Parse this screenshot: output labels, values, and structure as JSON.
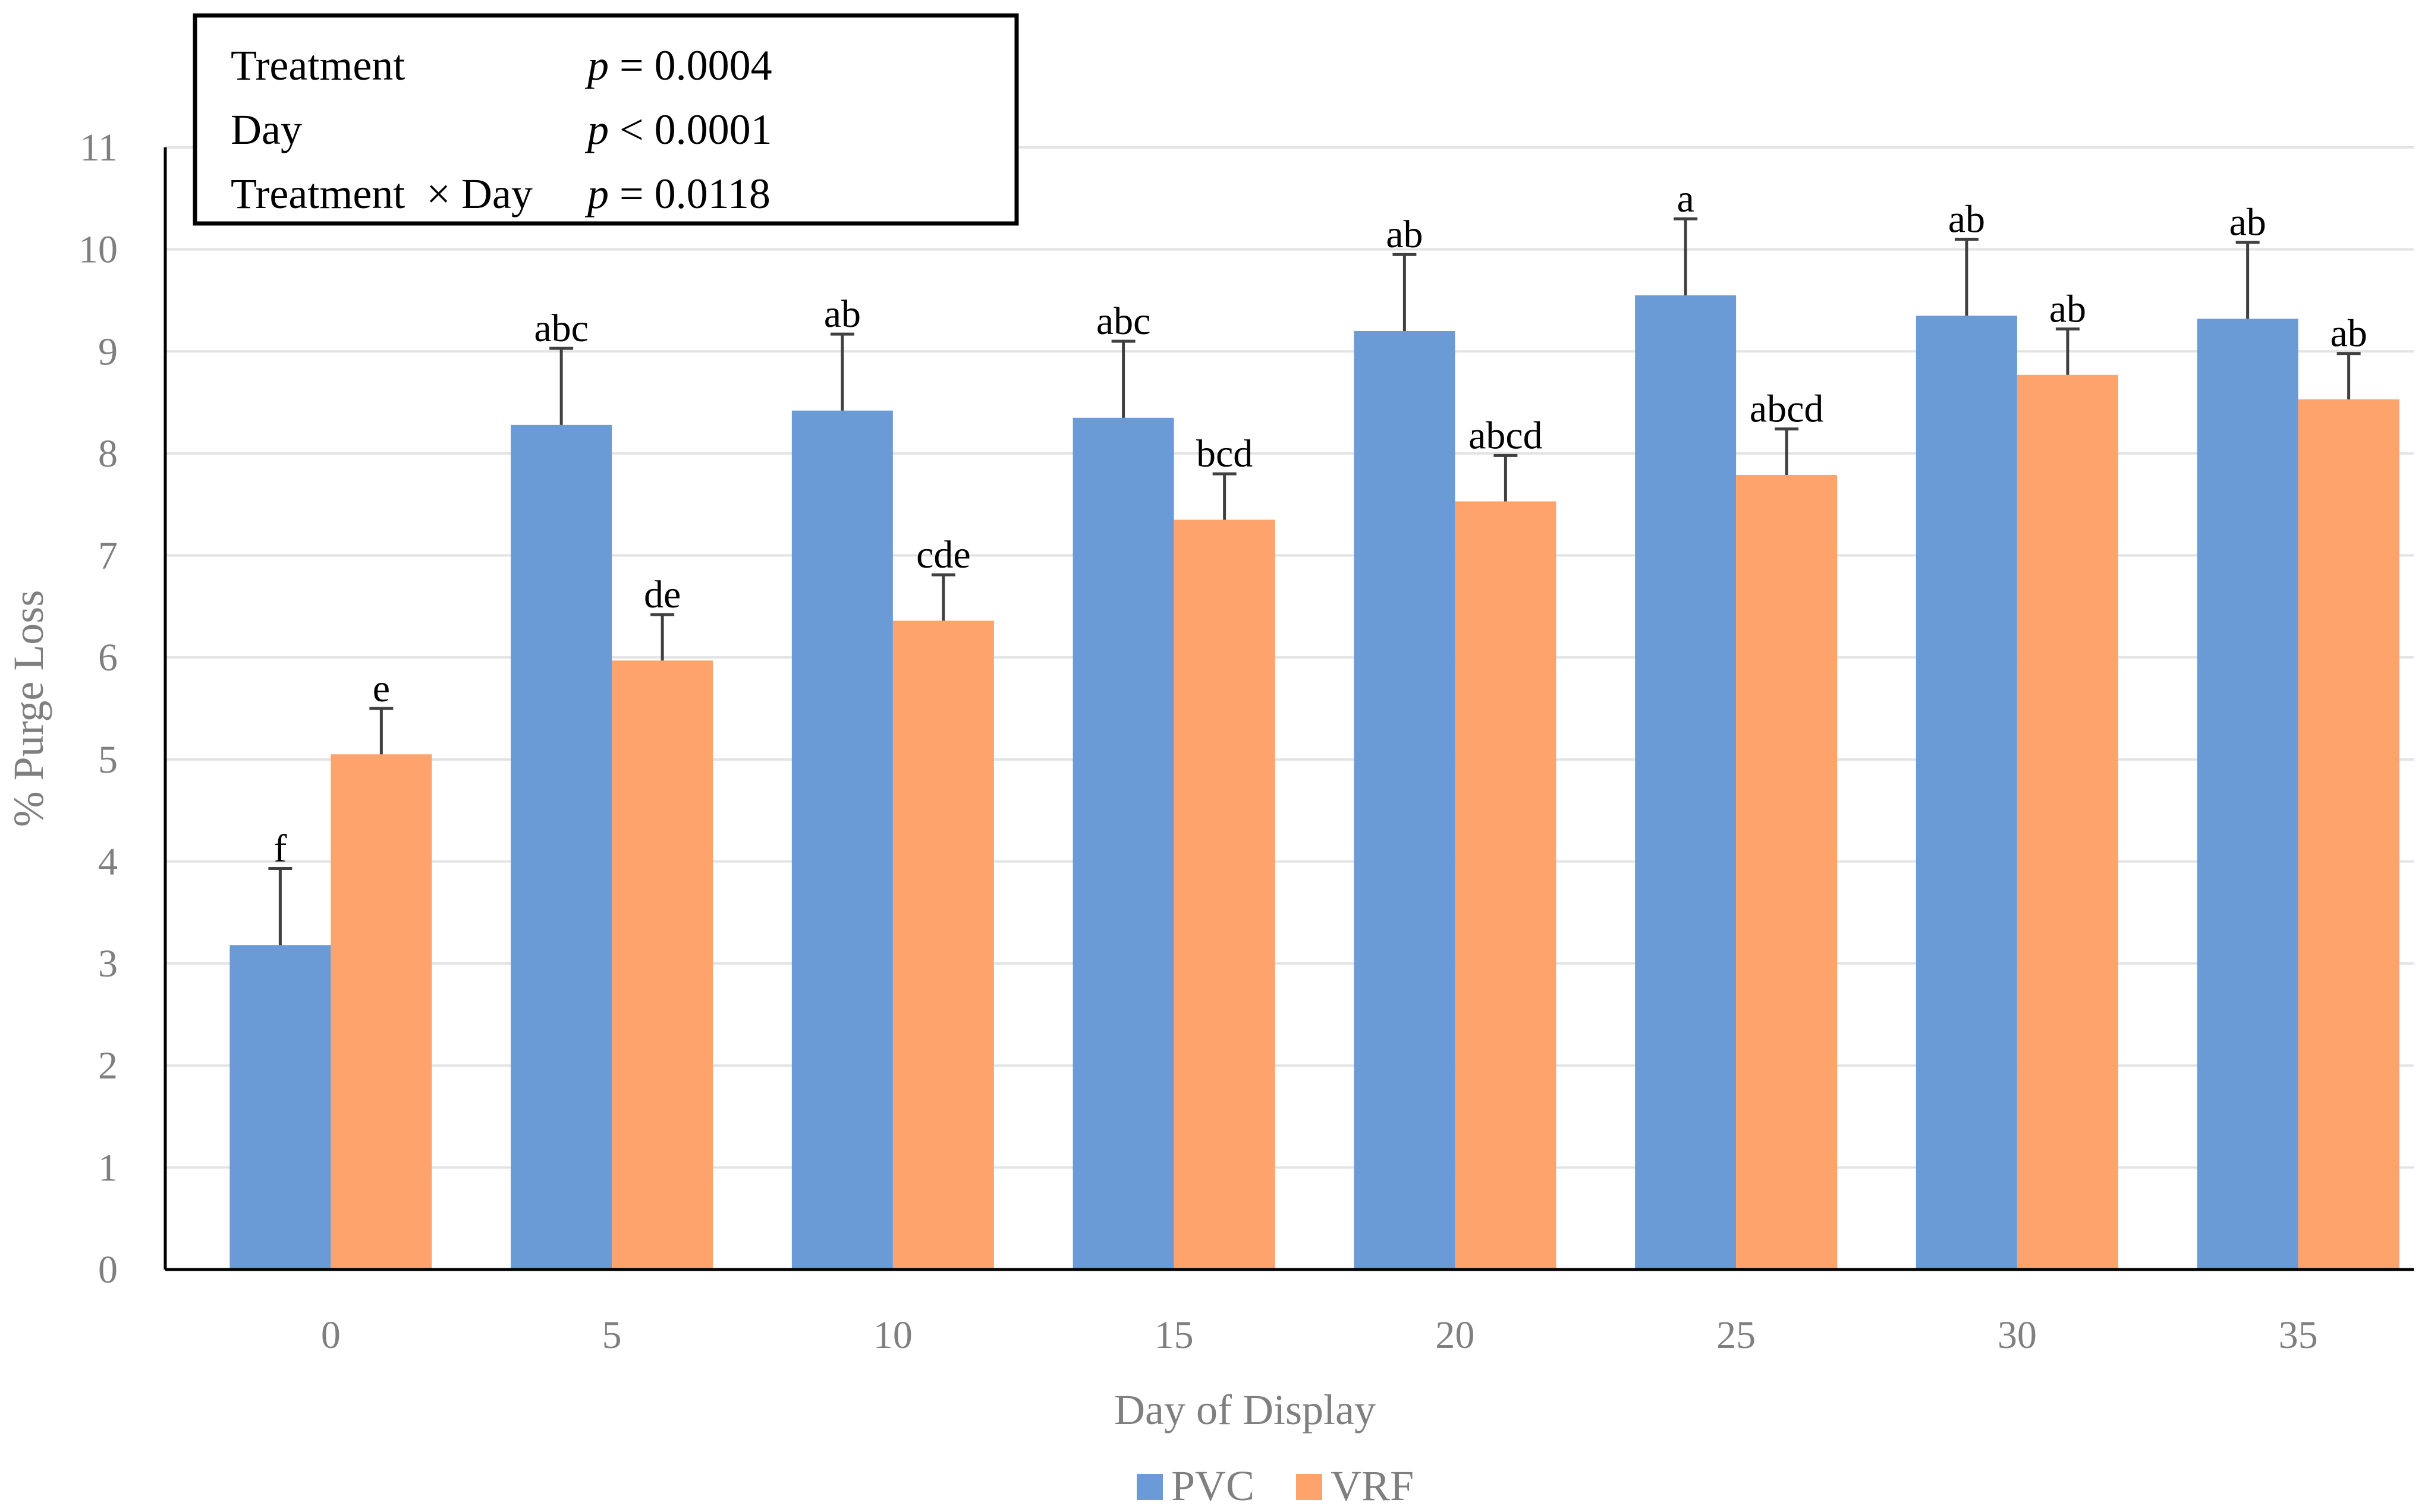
{
  "chart_data": {
    "type": "bar",
    "title": "",
    "xlabel": "Day of Display",
    "ylabel": "% Purge Loss",
    "ylim": [
      0,
      11
    ],
    "yticks": [
      "0",
      "1",
      "2",
      "3",
      "4",
      "5",
      "6",
      "7",
      "8",
      "9",
      "10",
      "11"
    ],
    "categories": [
      "0",
      "5",
      "10",
      "15",
      "20",
      "25",
      "30",
      "35"
    ],
    "grid": true,
    "legend_position": "bottom-center",
    "series": [
      {
        "name": "PVC",
        "color": "#6a9bd6",
        "values": [
          3.18,
          8.28,
          8.42,
          8.35,
          9.2,
          9.55,
          9.35,
          9.32
        ],
        "errors": [
          0.75,
          0.75,
          0.75,
          0.75,
          0.75,
          0.75,
          0.75,
          0.75
        ],
        "letters": [
          "f",
          "abc",
          "ab",
          "abc",
          "ab",
          "a",
          "ab",
          "ab"
        ]
      },
      {
        "name": "VRF",
        "color": "#fea36c",
        "values": [
          5.05,
          5.97,
          6.36,
          7.35,
          7.53,
          7.79,
          8.77,
          8.53
        ],
        "errors": [
          0.45,
          0.45,
          0.45,
          0.45,
          0.45,
          0.45,
          0.45,
          0.45
        ],
        "letters": [
          "e",
          "de",
          "cde",
          "bcd",
          "abcd",
          "abcd",
          "ab",
          "ab"
        ]
      }
    ],
    "annotation_box": {
      "rows": [
        {
          "label": "Treatment",
          "p_symbol": "p",
          "value": "= 0.0004"
        },
        {
          "label": "Day",
          "p_symbol": "p",
          "value": "< 0.0001"
        },
        {
          "label": "Treatment  × Day",
          "p_symbol": "p",
          "value": "= 0.0118"
        }
      ]
    }
  }
}
